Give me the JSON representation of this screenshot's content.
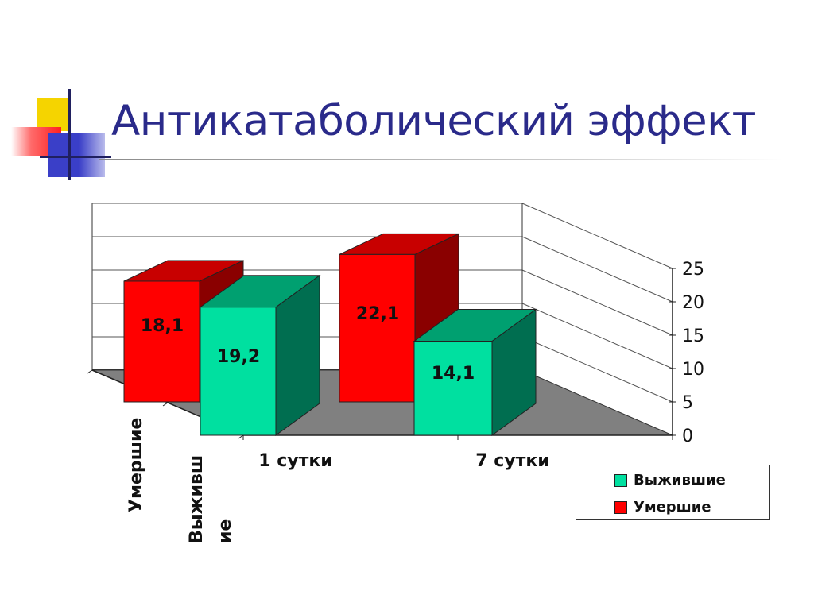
{
  "slide": {
    "title": "Антикатаболический эффект"
  },
  "colors": {
    "title": "#2a2a8a",
    "survived": "#00e0a0",
    "died": "#ff0000"
  },
  "chart_data": {
    "type": "bar",
    "title": "",
    "xlabel": "",
    "ylabel": "",
    "categories": [
      "1 сутки",
      "7 сутки"
    ],
    "depth_labels": [
      "Умершие",
      "Выживш\nие"
    ],
    "series": [
      {
        "name": "Выжившие",
        "values": [
          19.2,
          14.1
        ],
        "value_labels": [
          "19,2",
          "14,1"
        ],
        "color": "#00e0a0"
      },
      {
        "name": "Умершие",
        "values": [
          18.1,
          22.1
        ],
        "value_labels": [
          "18,1",
          "22,1"
        ],
        "color": "#ff0000"
      }
    ],
    "ylim": [
      0,
      25
    ],
    "yticks": [
      "0",
      "5",
      "10",
      "15",
      "20",
      "25"
    ],
    "grid": true,
    "legend": "bottom-right"
  }
}
